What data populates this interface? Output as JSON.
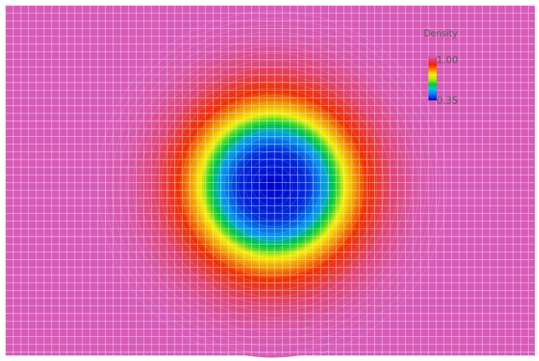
{
  "chart_data": {
    "type": "heatmap",
    "field_name": "Density",
    "shape": "radial",
    "mesh": "structured grid",
    "grid_on": true,
    "grid_color": "#ffffff",
    "value_range": [
      0.35,
      1.0
    ],
    "background_value": 1.0,
    "radial_profile": [
      {
        "r": 0.0,
        "value": 0.35
      },
      {
        "r": 0.2,
        "value": 0.38
      },
      {
        "r": 0.3,
        "value": 0.47
      },
      {
        "r": 0.36,
        "value": 0.58
      },
      {
        "r": 0.42,
        "value": 0.72
      },
      {
        "r": 0.55,
        "value": 0.87
      },
      {
        "r": 0.7,
        "value": 0.95
      },
      {
        "r": 0.85,
        "value": 0.99
      },
      {
        "r": 1.0,
        "value": 1.0
      }
    ],
    "colormap": [
      {
        "value": 0.35,
        "color": "#0000cc"
      },
      {
        "value": 0.45,
        "color": "#0088ff"
      },
      {
        "value": 0.52,
        "color": "#00cccc"
      },
      {
        "value": 0.58,
        "color": "#00cc33"
      },
      {
        "value": 0.66,
        "color": "#aaee00"
      },
      {
        "value": 0.73,
        "color": "#ffee00"
      },
      {
        "value": 0.8,
        "color": "#ff8800"
      },
      {
        "value": 0.88,
        "color": "#ee2200"
      },
      {
        "value": 0.94,
        "color": "#e0406a"
      },
      {
        "value": 1.0,
        "color": "#d85ab8"
      }
    ],
    "legend": {
      "title": "Density",
      "max_label": "1.00",
      "min_label": "0.35",
      "placement": "top-right"
    }
  }
}
